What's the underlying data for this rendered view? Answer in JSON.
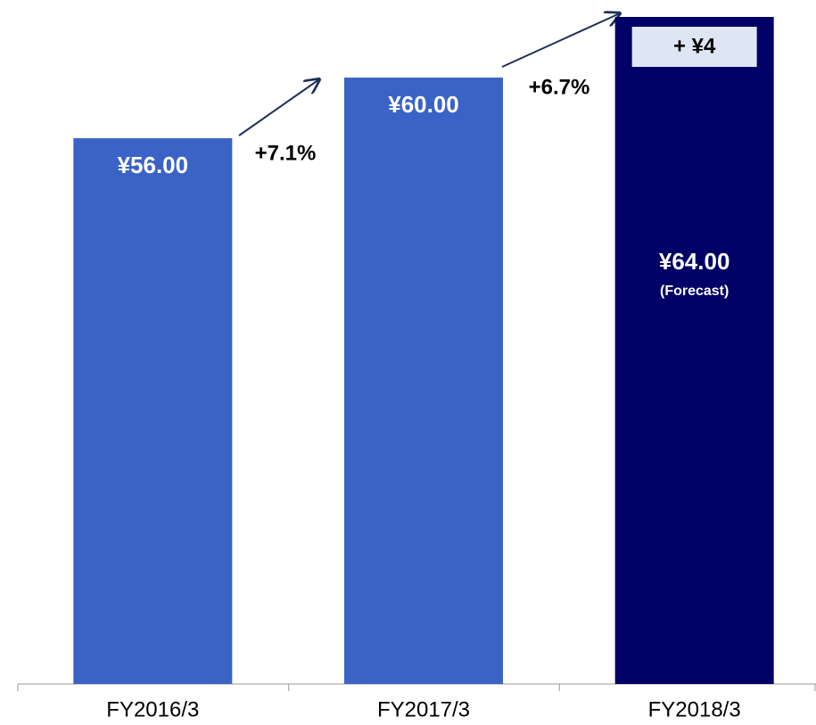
{
  "chart_data": {
    "type": "bar",
    "categories": [
      "FY2016/3",
      "FY2017/3",
      "FY2018/3"
    ],
    "values": [
      56,
      60,
      64
    ],
    "value_labels": [
      "¥56.00",
      "¥60.00",
      "¥64.00"
    ],
    "colors": [
      "#3a63c5",
      "#3a63c5",
      "#000066"
    ],
    "ylim": [
      20,
      65
    ],
    "growth_labels": [
      "+7.1%",
      "+6.7%"
    ],
    "increase_label": "+ ¥4",
    "forecast_note": "(Forecast)"
  }
}
